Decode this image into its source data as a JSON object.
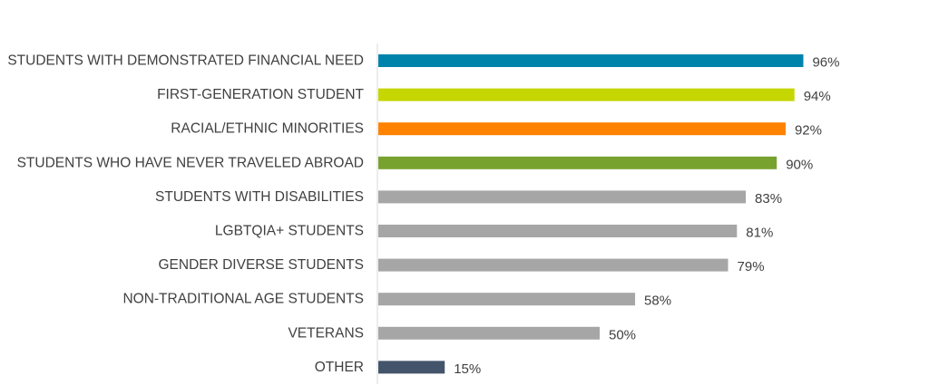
{
  "chart_data": {
    "type": "bar",
    "orientation": "horizontal",
    "categories": [
      "STUDENTS WITH DEMONSTRATED FINANCIAL NEED",
      "FIRST-GENERATION STUDENT",
      "RACIAL/ETHNIC MINORITIES",
      "STUDENTS WHO HAVE NEVER TRAVELED ABROAD",
      "STUDENTS WITH DISABILITIES",
      "LGBTQIA+ STUDENTS",
      "GENDER DIVERSE STUDENTS",
      "NON-TRADITIONAL AGE STUDENTS",
      "VETERANS",
      "OTHER"
    ],
    "values": [
      96,
      94,
      92,
      90,
      83,
      81,
      79,
      58,
      50,
      15
    ],
    "value_labels": [
      "96%",
      "94%",
      "92%",
      "90%",
      "83%",
      "81%",
      "79%",
      "58%",
      "50%",
      "15%"
    ],
    "colors": [
      "#0083AB",
      "#C5D600",
      "#FF8200",
      "#78A22F",
      "#A6A6A6",
      "#A6A6A6",
      "#A6A6A6",
      "#A6A6A6",
      "#A6A6A6",
      "#44546A"
    ],
    "xlim": [
      0,
      100
    ],
    "grid": false,
    "legend": "none"
  }
}
